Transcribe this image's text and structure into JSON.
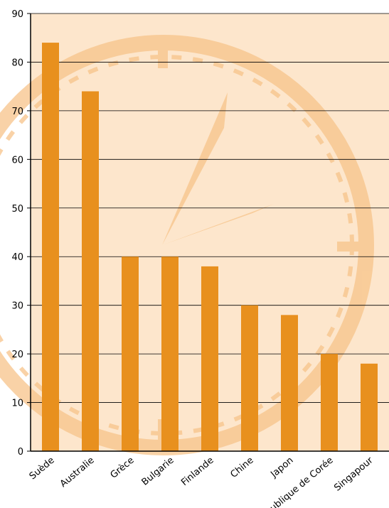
{
  "chart_data": {
    "type": "bar",
    "categories": [
      "Suède",
      "Australie",
      "Grèce",
      "Bulgarie",
      "Finlande",
      "Chine",
      "Japon",
      "République de Corée",
      "Singapour"
    ],
    "values": [
      84,
      74,
      40,
      40,
      38,
      30,
      28,
      20,
      18
    ],
    "color": "#e8901e",
    "ylim": [
      0,
      90
    ],
    "yticks": [
      0,
      10,
      20,
      30,
      40,
      50,
      60,
      70,
      80,
      90
    ],
    "grid": true
  }
}
